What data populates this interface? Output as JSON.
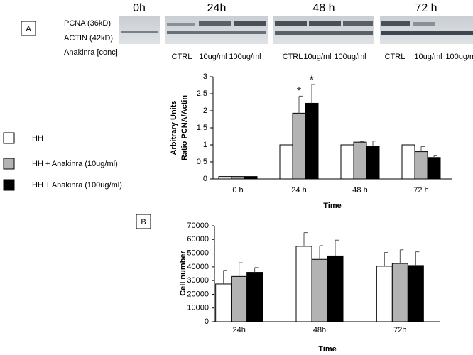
{
  "blot": {
    "panel_label": "A",
    "timepoints": [
      "0h",
      "24h",
      "48 h",
      "72 h"
    ],
    "rows": [
      "PCNA (36kD)",
      "ACTIN (42kD)"
    ],
    "condition_label": "Anakinra [conc]",
    "lanes": [
      [
        "CTRL",
        "10ug/ml",
        "100ug/ml"
      ],
      [
        "CTRL",
        "10ug/ml",
        "100ug/ml"
      ],
      [
        "CTRL",
        "10ug/ml",
        "100ug/ml"
      ]
    ]
  },
  "chart_data": [
    {
      "type": "bar",
      "ylabel": [
        "Arbitrary Units",
        "Ratio PCNA/Actin"
      ],
      "xlabel": "Time",
      "categories": [
        "0 h",
        "24 h",
        "48 h",
        "72 h"
      ],
      "ylim": [
        0,
        3
      ],
      "yticks": [
        0,
        0.5,
        1,
        1.5,
        2,
        2.5,
        3
      ],
      "series": [
        {
          "name": "HH",
          "color": "#ffffff",
          "values": [
            0.07,
            1,
            1,
            1
          ],
          "errors": [
            null,
            null,
            null,
            null
          ]
        },
        {
          "name": "HH + Anakinra (10ug/ml)",
          "color": "#b3b3b3",
          "values": [
            0.07,
            1.93,
            1.08,
            0.8
          ],
          "errors": [
            null,
            0.5,
            0.02,
            0.15
          ],
          "significance": [
            null,
            "*",
            null,
            null
          ]
        },
        {
          "name": "HH + Anakinra (100ug/ml)",
          "color": "#000000",
          "values": [
            0.07,
            2.22,
            0.96,
            0.63
          ],
          "errors": [
            null,
            0.55,
            0.15,
            0.05
          ],
          "significance": [
            null,
            "*",
            null,
            null
          ]
        }
      ]
    },
    {
      "type": "bar",
      "panel_label": "B",
      "ylabel": [
        "Cell number"
      ],
      "xlabel": "Time",
      "categories": [
        "24h",
        "48h",
        "72h"
      ],
      "ylim": [
        0,
        70000
      ],
      "yticks": [
        0,
        10000,
        20000,
        30000,
        40000,
        50000,
        60000,
        70000
      ],
      "series": [
        {
          "color": "#ffffff",
          "values": [
            27500,
            55000,
            40500
          ],
          "errors": [
            10000,
            10000,
            10000
          ]
        },
        {
          "color": "#b3b3b3",
          "values": [
            33000,
            45500,
            42500
          ],
          "errors": [
            10000,
            10000,
            10000
          ]
        },
        {
          "color": "#000000",
          "values": [
            36000,
            48000,
            41000
          ],
          "errors": [
            3500,
            11500,
            10000
          ]
        }
      ]
    }
  ]
}
